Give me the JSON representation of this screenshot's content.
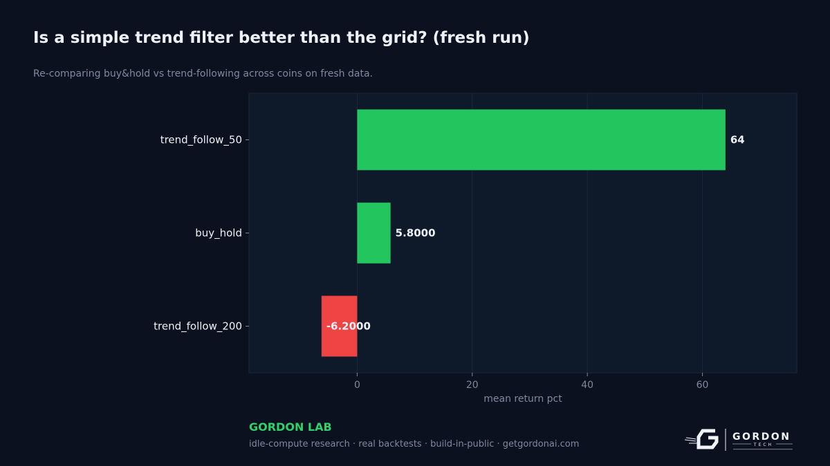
{
  "header": {
    "title": "Is a simple trend filter better than the grid? (fresh run)",
    "subtitle": "Re-comparing buy&hold vs trend-following across coins on fresh data."
  },
  "chart_data": {
    "type": "bar",
    "orientation": "horizontal",
    "categories": [
      "trend_follow_50",
      "buy_hold",
      "trend_follow_200"
    ],
    "values": [
      64,
      5.8,
      -6.2
    ],
    "value_labels": [
      "64",
      "5.8000",
      "-6.2000"
    ],
    "xlabel": "mean return pct",
    "ylabel": "",
    "xlim": [
      -18.8,
      76.4
    ],
    "xticks": [
      0,
      20,
      40,
      60
    ],
    "grid": true,
    "colors": {
      "positive": "#22c55e",
      "negative": "#ef4444",
      "plot_bg": "#0e1a2a"
    }
  },
  "footer": {
    "brand": "GORDON LAB",
    "tagline": "idle-compute research · real backtests · build-in-public · getgordonai.com",
    "logo_text": "GORDON",
    "logo_sub": "TECH"
  }
}
